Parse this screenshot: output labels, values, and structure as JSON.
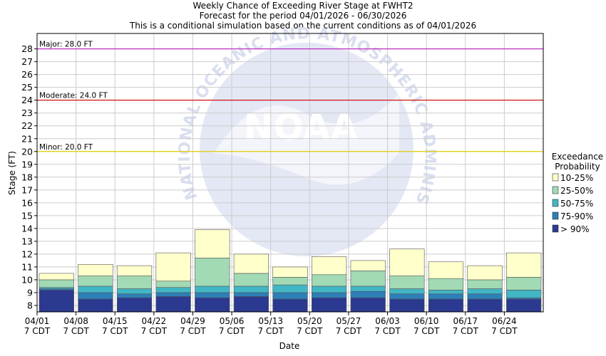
{
  "chart_data": {
    "type": "bar",
    "title": "Weekly Chance of Exceeding River Stage at FWHT2",
    "subtitle_lines": [
      "Forecast for the period 04/01/2026 - 06/30/2026",
      "This is a conditional simulation based on the current conditions as of 04/01/2026"
    ],
    "xlabel": "Date",
    "ylabel": "Stage (FT)",
    "ylim": [
      7.5,
      29.2
    ],
    "yticks": [
      8,
      9,
      10,
      11,
      12,
      13,
      14,
      15,
      16,
      17,
      18,
      19,
      20,
      21,
      22,
      23,
      24,
      25,
      26,
      27,
      28
    ],
    "grid": true,
    "legend_position": "right",
    "legend_title_lines": [
      "Exceedance",
      "Probability"
    ],
    "categories": [
      "04/01",
      "04/08",
      "04/15",
      "04/22",
      "04/29",
      "05/06",
      "05/13",
      "05/20",
      "05/27",
      "06/03",
      "06/10",
      "06/17",
      "06/24"
    ],
    "category_sublabel": "7 CDT",
    "series": [
      {
        "name": "> 90%",
        "color": "#2b3990",
        "values": [
          9.2,
          8.5,
          8.6,
          8.7,
          8.6,
          8.7,
          8.5,
          8.6,
          8.6,
          8.5,
          8.5,
          8.5,
          8.5
        ]
      },
      {
        "name": "75-90%",
        "color": "#2c7fb8",
        "values": [
          9.3,
          9.0,
          8.9,
          9.0,
          9.0,
          9.0,
          9.0,
          9.0,
          9.1,
          8.9,
          8.9,
          8.9,
          8.6
        ]
      },
      {
        "name": "50-75%",
        "color": "#41b6c4",
        "values": [
          9.4,
          9.5,
          9.3,
          9.4,
          9.5,
          9.5,
          9.6,
          9.5,
          9.5,
          9.3,
          9.2,
          9.3,
          9.2
        ]
      },
      {
        "name": "25-50%",
        "color": "#a1dab4",
        "values": [
          10.0,
          10.3,
          10.3,
          9.9,
          11.7,
          10.5,
          10.2,
          10.4,
          10.7,
          10.3,
          10.1,
          10.0,
          10.2
        ]
      },
      {
        "name": "10-25%",
        "color": "#ffffcc",
        "values": [
          10.5,
          11.2,
          11.1,
          12.1,
          13.9,
          12.0,
          11.0,
          11.8,
          11.5,
          12.4,
          11.4,
          11.1,
          12.1
        ]
      }
    ],
    "thresholds": [
      {
        "label": "Major: 28.0 FT",
        "value": 28.0,
        "color": "#c030c0"
      },
      {
        "label": "Moderate: 24.0 FT",
        "value": 24.0,
        "color": "#d00000"
      },
      {
        "label": "Minor: 20.0 FT",
        "value": 20.0,
        "color": "#e0d000"
      }
    ]
  },
  "watermark": {
    "ring_text": "NATIONAL OCEANIC AND ATMOSPHERIC ADMINISTRATION",
    "logo_text": "NOAA"
  }
}
